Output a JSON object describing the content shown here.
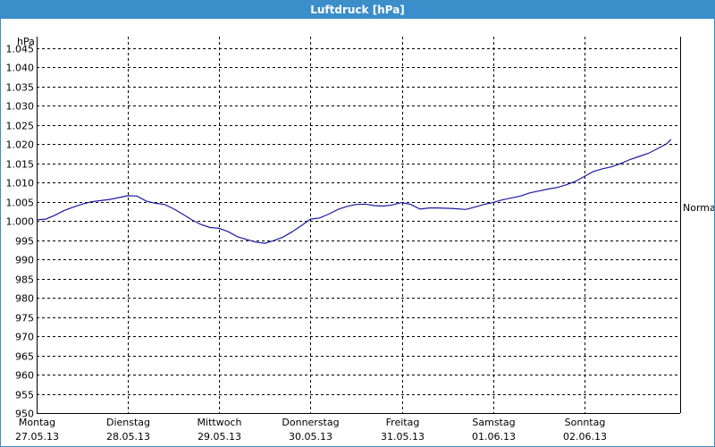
{
  "window": {
    "title": "Luftdruck [hPa]"
  },
  "chart_data": {
    "type": "line",
    "title": "Luftdruck [hPa]",
    "ylabel": "hPa",
    "ylim": [
      950,
      1048
    ],
    "yticks": [
      {
        "value": 1045,
        "label": "1.045"
      },
      {
        "value": 1040,
        "label": "1.040"
      },
      {
        "value": 1035,
        "label": "1.035"
      },
      {
        "value": 1030,
        "label": "1.030"
      },
      {
        "value": 1025,
        "label": "1.025"
      },
      {
        "value": 1020,
        "label": "1.020"
      },
      {
        "value": 1015,
        "label": "1.015"
      },
      {
        "value": 1010,
        "label": "1.010"
      },
      {
        "value": 1005,
        "label": "1.005"
      },
      {
        "value": 1000,
        "label": "1.000"
      },
      {
        "value": 995,
        "label": "995"
      },
      {
        "value": 990,
        "label": "990"
      },
      {
        "value": 985,
        "label": "985"
      },
      {
        "value": 980,
        "label": "980"
      },
      {
        "value": 975,
        "label": "975"
      },
      {
        "value": 970,
        "label": "970"
      },
      {
        "value": 965,
        "label": "965"
      },
      {
        "value": 960,
        "label": "960"
      },
      {
        "value": 955,
        "label": "955"
      },
      {
        "value": 950,
        "label": "950"
      }
    ],
    "xlim": [
      0,
      7.05
    ],
    "xticks": [
      {
        "value": 0,
        "day": "Montag",
        "date": "27.05.13"
      },
      {
        "value": 1,
        "day": "Dienstag",
        "date": "28.05.13"
      },
      {
        "value": 2,
        "day": "Mittwoch",
        "date": "29.05.13"
      },
      {
        "value": 3,
        "day": "Donnerstag",
        "date": "30.05.13"
      },
      {
        "value": 4,
        "day": "Freitag",
        "date": "31.05.13"
      },
      {
        "value": 5,
        "day": "Samstag",
        "date": "01.06.13"
      },
      {
        "value": 6,
        "day": "Sonntag",
        "date": "02.06.13"
      }
    ],
    "grid": true,
    "reference_line": {
      "label": "Normal",
      "value": 1003.5
    },
    "series": [
      {
        "color": "#1a1aa0",
        "x": [
          0,
          0.1,
          0.2,
          0.3,
          0.4,
          0.5,
          0.6,
          0.7,
          0.8,
          0.9,
          1.0,
          1.1,
          1.2,
          1.3,
          1.4,
          1.5,
          1.6,
          1.7,
          1.8,
          1.9,
          2.0,
          2.1,
          2.2,
          2.3,
          2.4,
          2.5,
          2.6,
          2.7,
          2.8,
          2.9,
          3.0,
          3.1,
          3.2,
          3.3,
          3.4,
          3.5,
          3.6,
          3.7,
          3.8,
          3.9,
          4.0,
          4.1,
          4.2,
          4.3,
          4.4,
          4.5,
          4.6,
          4.7,
          4.8,
          4.9,
          5.0,
          5.1,
          5.2,
          5.3,
          5.4,
          5.5,
          5.6,
          5.7,
          5.8,
          5.9,
          6.0,
          6.1,
          6.2,
          6.3,
          6.4,
          6.5,
          6.6,
          6.7,
          6.8,
          6.9,
          6.95
        ],
        "y": [
          1000.3,
          1000.5,
          1001.5,
          1002.7,
          1003.6,
          1004.4,
          1005.0,
          1005.3,
          1005.6,
          1006.1,
          1006.6,
          1006.5,
          1005.2,
          1004.6,
          1004.3,
          1003.2,
          1001.8,
          1000.3,
          999.1,
          998.3,
          998.1,
          997.2,
          995.9,
          995.2,
          994.5,
          994.2,
          994.9,
          995.8,
          997.2,
          998.8,
          1000.5,
          1000.8,
          1001.8,
          1003.0,
          1003.8,
          1004.3,
          1004.4,
          1004.0,
          1003.9,
          1004.2,
          1004.8,
          1004.3,
          1003.1,
          1003.4,
          1003.4,
          1003.3,
          1003.2,
          1003.0,
          1003.6,
          1004.3,
          1004.8,
          1005.5,
          1006.0,
          1006.5,
          1007.3,
          1007.8,
          1008.3,
          1008.7,
          1009.4,
          1010.3,
          1011.6,
          1012.9,
          1013.6,
          1014.1,
          1015.0,
          1016.0,
          1016.8,
          1017.6,
          1018.8,
          1020.1,
          1021.2
        ]
      }
    ]
  }
}
